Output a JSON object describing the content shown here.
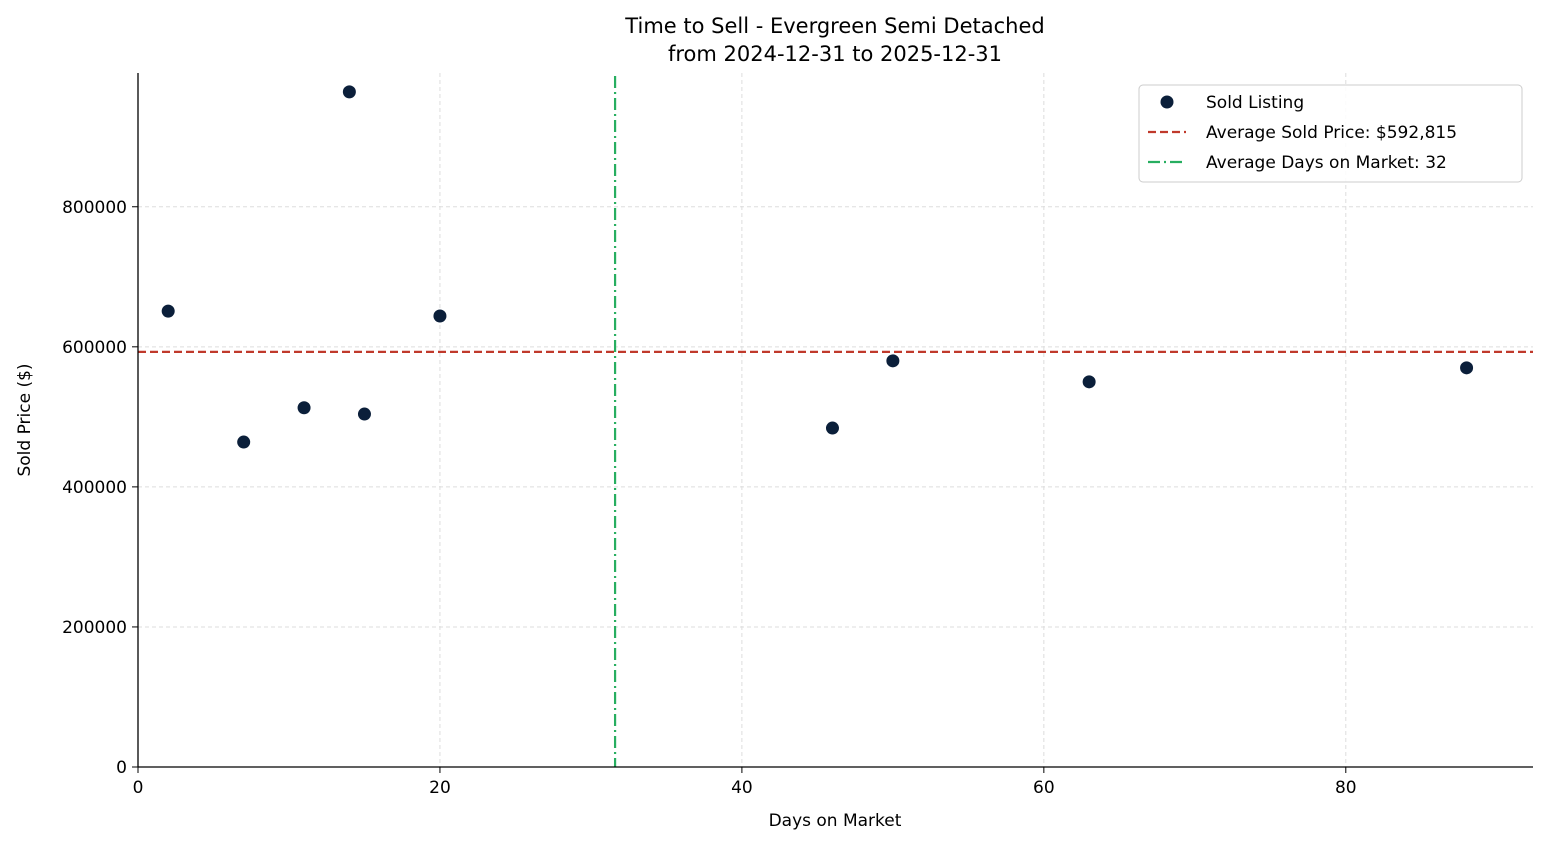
{
  "chart_data": {
    "type": "scatter",
    "title": "Time to Sell - Evergreen Semi Detached",
    "subtitle": "from 2024-12-31 to 2025-12-31",
    "xlabel": "Days on Market",
    "ylabel": "Sold Price ($)",
    "xlim": [
      0,
      92.4
    ],
    "ylim": [
      0,
      991000
    ],
    "xticks": [
      0,
      20,
      40,
      60,
      80
    ],
    "yticks": [
      0,
      200000,
      400000,
      600000,
      800000
    ],
    "grid": true,
    "legend_placement": "top-right",
    "series": [
      {
        "name": "Sold Listing",
        "color": "#0b1f3a",
        "x": [
          2,
          7,
          11,
          14,
          15,
          20,
          46,
          50,
          63,
          88
        ],
        "y": [
          651000,
          464000,
          513000,
          964000,
          504000,
          644000,
          484000,
          580000,
          550000,
          570000
        ]
      }
    ],
    "reference_lines": [
      {
        "name": "Average Sold Price: $592,815",
        "axis": "y",
        "value": 592815,
        "color": "#c0392b",
        "style": "dashed"
      },
      {
        "name": "Average Days on Market: 32",
        "axis": "x",
        "value": 31.6,
        "color": "#27ae60",
        "style": "dashdot"
      }
    ]
  }
}
